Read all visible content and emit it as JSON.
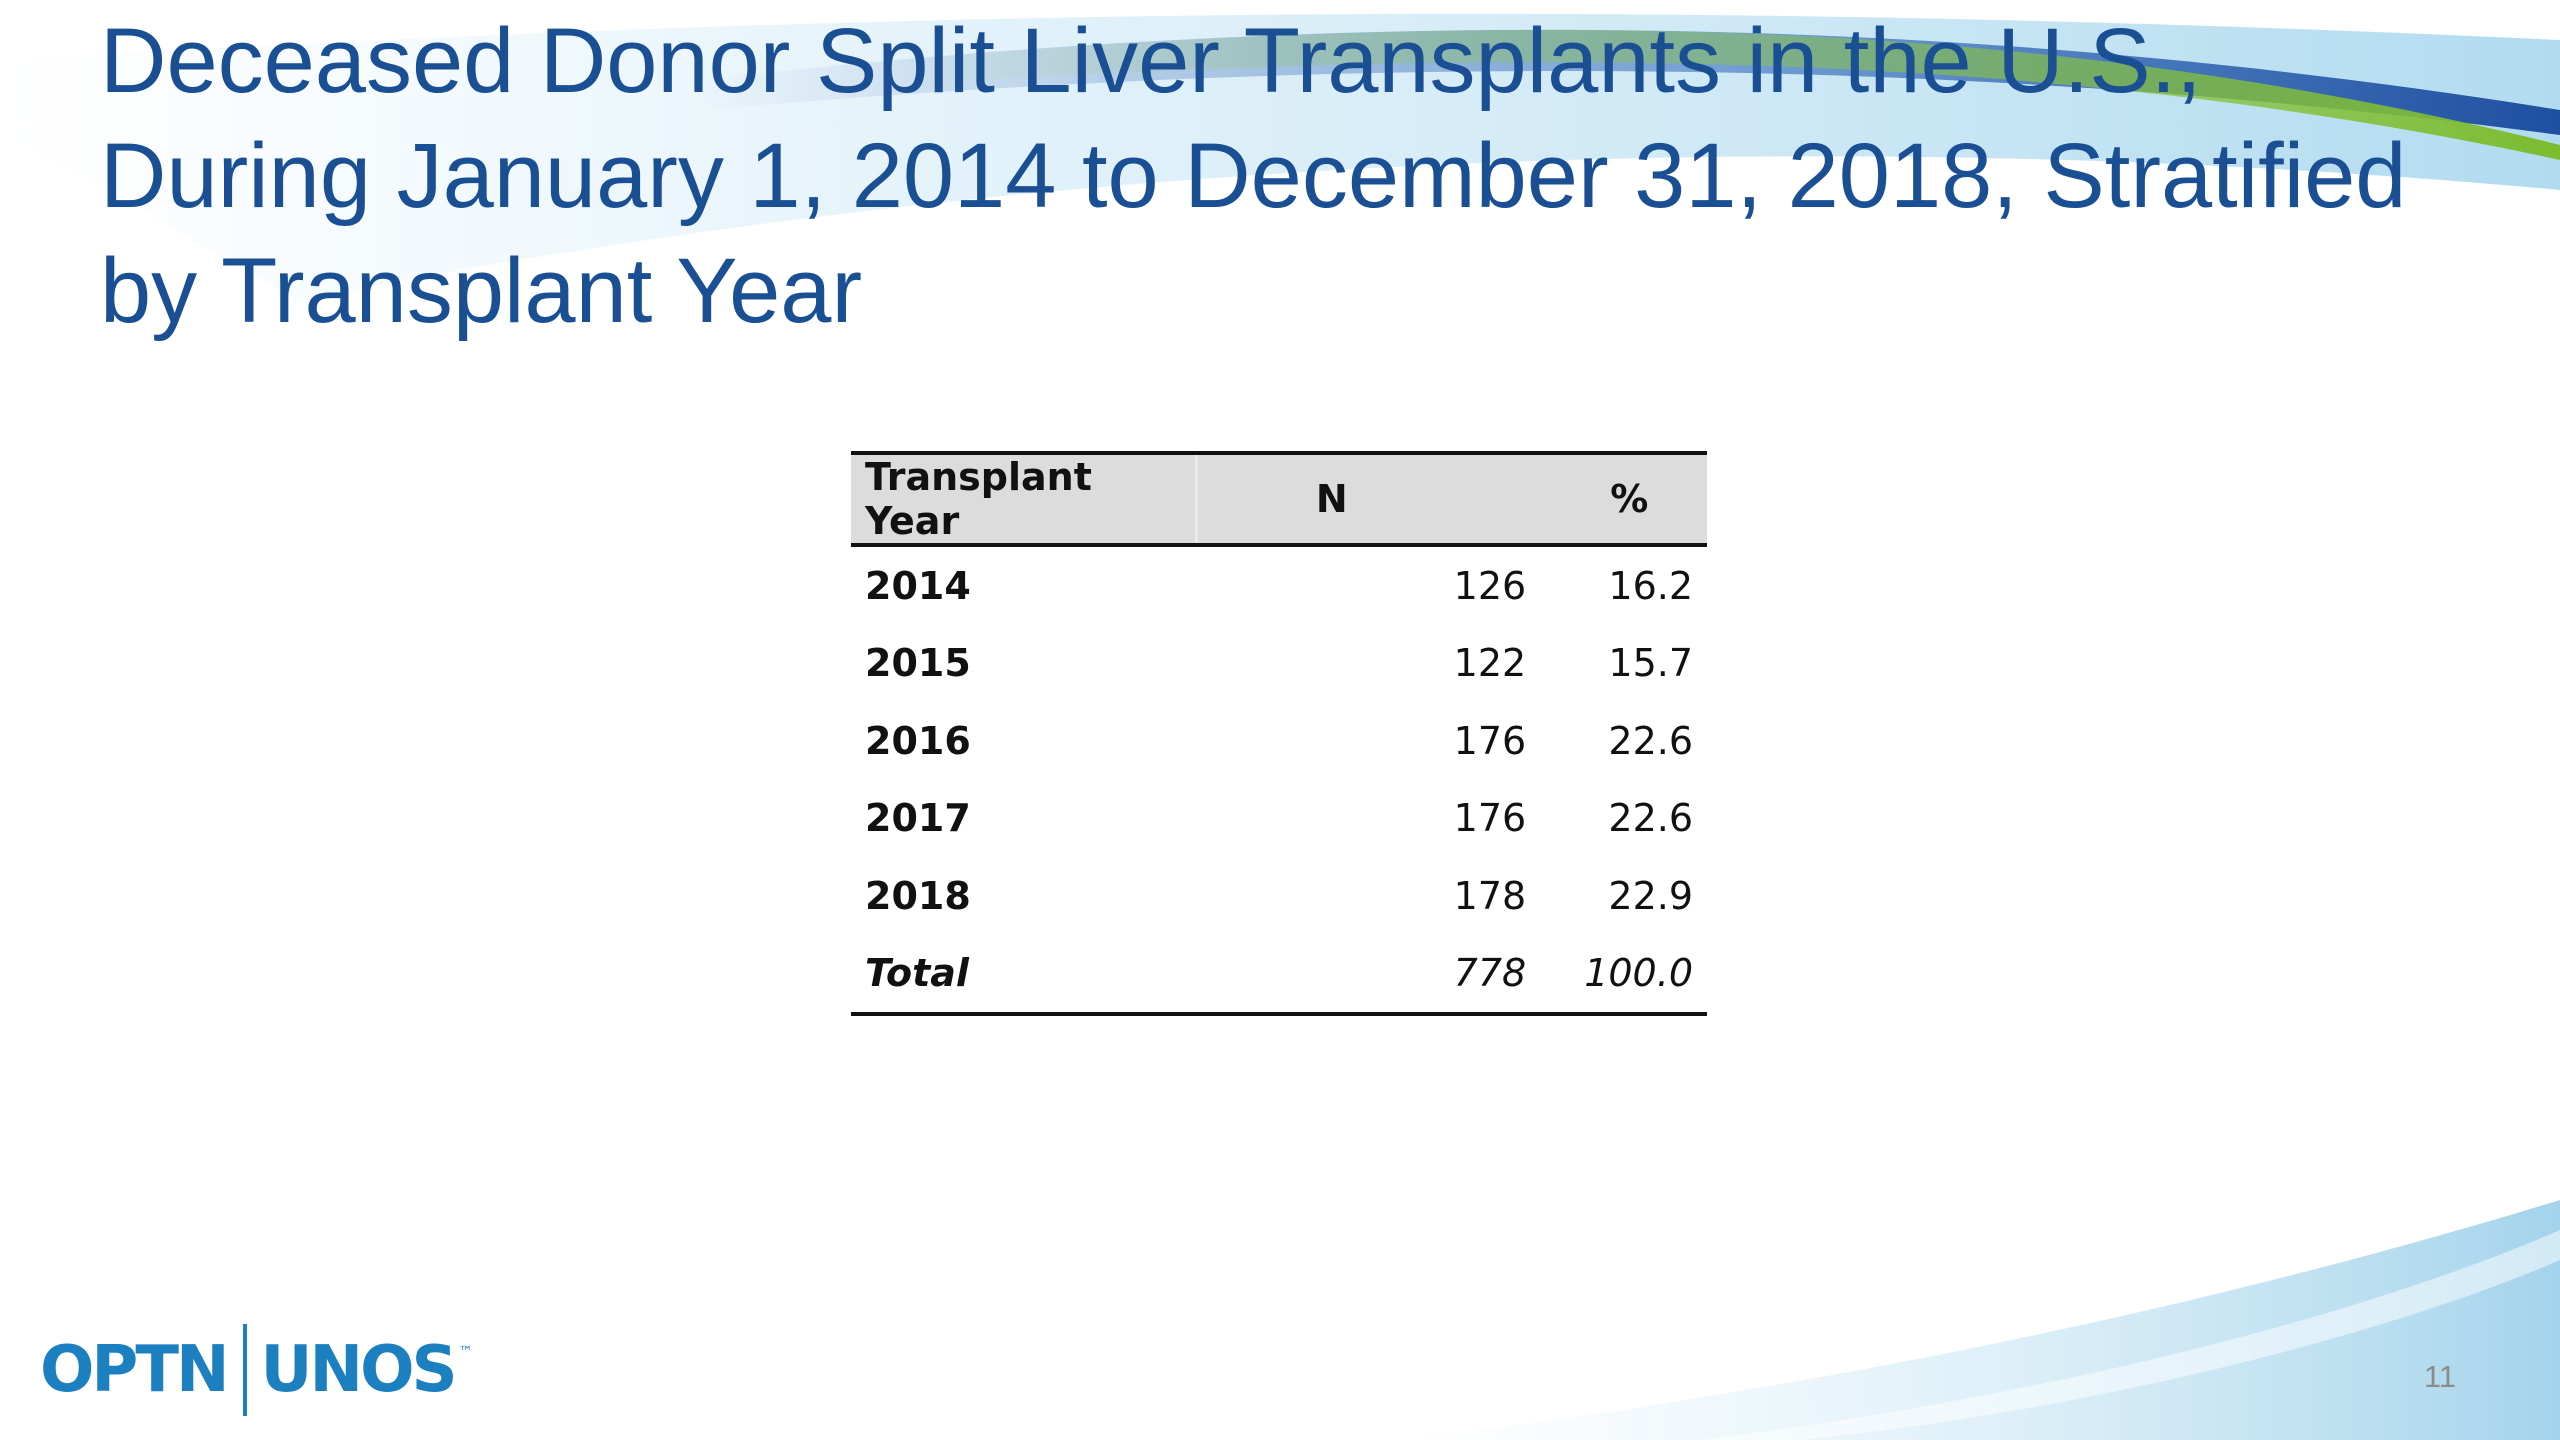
{
  "slide": {
    "title_lines": [
      "Deceased Donor Split Liver Transplants in the U.S.,",
      "During January 1, 2014 to December 31, 2018, Stratified",
      "by Transplant Year"
    ],
    "page_number": "11"
  },
  "table": {
    "headers": [
      "Transplant Year",
      "N",
      "%"
    ],
    "rows": [
      {
        "year": "2014",
        "n": "126",
        "pct": "16.2"
      },
      {
        "year": "2015",
        "n": "122",
        "pct": "15.7"
      },
      {
        "year": "2016",
        "n": "176",
        "pct": "22.6"
      },
      {
        "year": "2017",
        "n": "176",
        "pct": "22.6"
      },
      {
        "year": "2018",
        "n": "178",
        "pct": "22.9"
      }
    ],
    "total": {
      "label": "Total",
      "n": "778",
      "pct": "100.0"
    }
  },
  "logo": {
    "left_text": "OPTN",
    "right_text": "UNOS",
    "trademark": "™"
  },
  "colors": {
    "title": "#1a4f93",
    "logo": "#1b7fc0",
    "header_fill": "#dcdcdc",
    "swoosh_blue": "#1f4fa0",
    "swoosh_green": "#8cc63f",
    "swoosh_light": "#bfe3f2"
  }
}
